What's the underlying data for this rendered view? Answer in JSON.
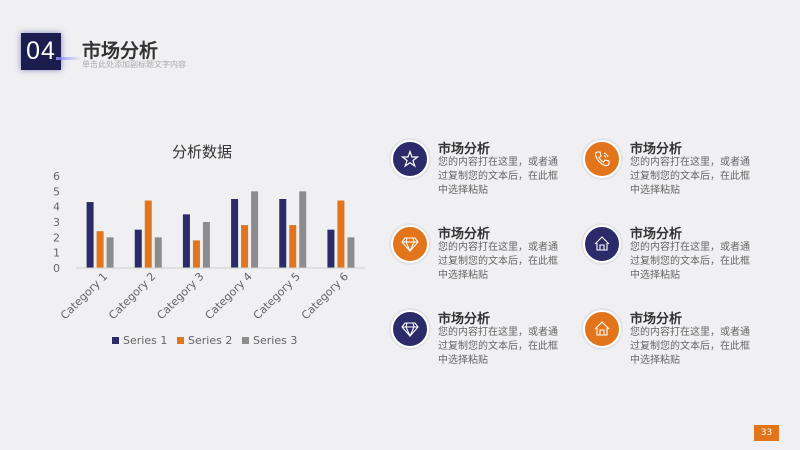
{
  "header": {
    "number": "04",
    "title": "市场分析",
    "subtitle": "单击此处添加副标题文字内容"
  },
  "colors": {
    "navy": "#2b2b6a",
    "orange": "#e2751b",
    "gray": "#8c8c8c"
  },
  "chart_data": {
    "type": "bar",
    "title": "分析数据",
    "categories": [
      "Category 1",
      "Category 2",
      "Category 3",
      "Category 4",
      "Category 5",
      "Category 6"
    ],
    "series": [
      {
        "name": "Series 1",
        "color": "#2b2b6a",
        "values": [
          4.3,
          2.5,
          3.5,
          4.5,
          4.5,
          2.5
        ]
      },
      {
        "name": "Series 2",
        "color": "#e2751b",
        "values": [
          2.4,
          4.4,
          1.8,
          2.8,
          2.8,
          4.4
        ]
      },
      {
        "name": "Series 3",
        "color": "#8c8c8c",
        "values": [
          2.0,
          2.0,
          3.0,
          5.0,
          5.0,
          2.0
        ]
      }
    ],
    "ylim": [
      0,
      6
    ],
    "yticks": [
      0,
      1,
      2,
      3,
      4,
      5,
      6
    ],
    "legend": "bottom",
    "grid": false
  },
  "items": [
    {
      "icon": "star-icon",
      "color": "navy",
      "title": "市场分析",
      "text": "您的内容打在这里，或者通过复制您的文本后，在此框中选择粘贴"
    },
    {
      "icon": "phone-icon",
      "color": "orange",
      "title": "市场分析",
      "text": "您的内容打在这里，或者通过复制您的文本后，在此框中选择粘贴"
    },
    {
      "icon": "diamond-icon",
      "color": "orange",
      "title": "市场分析",
      "text": "您的内容打在这里，或者通过复制您的文本后，在此框中选择粘贴"
    },
    {
      "icon": "house-icon",
      "color": "navy",
      "title": "市场分析",
      "text": "您的内容打在这里，或者通过复制您的文本后，在此框中选择粘贴"
    },
    {
      "icon": "diamond-icon",
      "color": "navy",
      "title": "市场分析",
      "text": "您的内容打在这里，或者通过复制您的文本后，在此框中选择粘贴"
    },
    {
      "icon": "house-icon",
      "color": "orange",
      "title": "市场分析",
      "text": "您的内容打在这里，或者通过复制您的文本后，在此框中选择粘贴"
    }
  ],
  "page_number": "33"
}
